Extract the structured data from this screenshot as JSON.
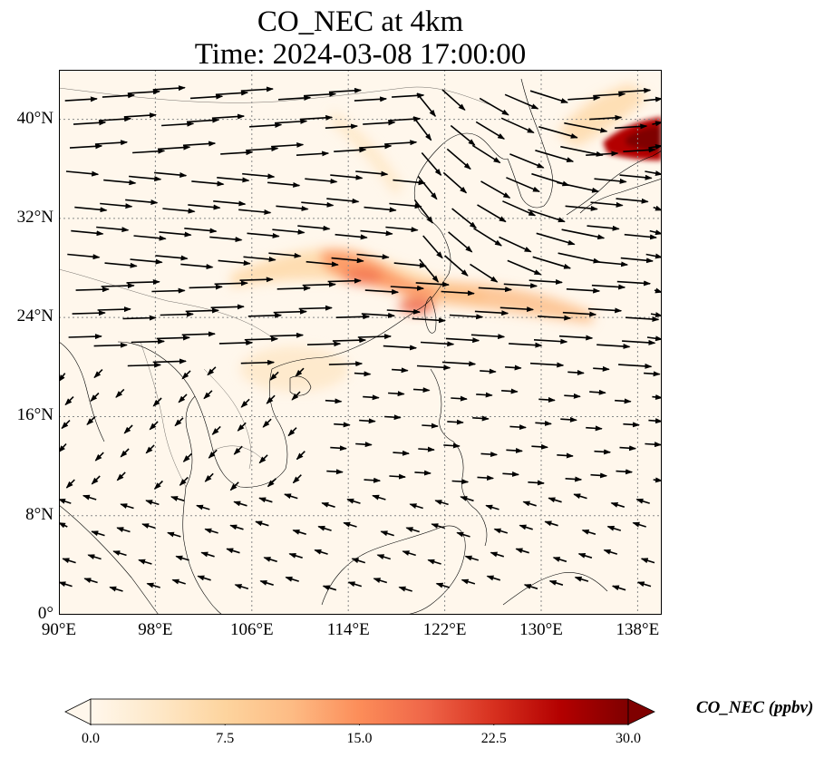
{
  "title_line1": "CO_NEC at 4km",
  "title_line2": "Time: 2024-03-08 17:00:00",
  "map": {
    "projection": "PlateCarree",
    "lon_range": [
      90,
      140
    ],
    "lat_range": [
      0,
      44
    ],
    "lat_ticks": [
      {
        "value": 0,
        "label": "0°"
      },
      {
        "value": 8,
        "label": "8°N"
      },
      {
        "value": 16,
        "label": "16°N"
      },
      {
        "value": 24,
        "label": "24°N"
      },
      {
        "value": 32,
        "label": "32°N"
      },
      {
        "value": 40,
        "label": "40°N"
      }
    ],
    "lon_ticks": [
      {
        "value": 90,
        "label": "90°E"
      },
      {
        "value": 98,
        "label": "98°E"
      },
      {
        "value": 106,
        "label": "106°E"
      },
      {
        "value": 114,
        "label": "114°E"
      },
      {
        "value": 122,
        "label": "122°E"
      },
      {
        "value": 130,
        "label": "130°E"
      },
      {
        "value": 138,
        "label": "138°E"
      }
    ],
    "gridlines": true,
    "field_variable": "CO_NEC",
    "wind_vectors": true
  },
  "colorbar": {
    "label": "CO_NEC (ppbv)",
    "min": 0.0,
    "max": 30.0,
    "extend": "both",
    "colormap": "OrRd",
    "ticks": [
      "0.0",
      "7.5",
      "15.0",
      "22.5",
      "30.0"
    ],
    "colors": [
      "#fff7ec",
      "#fee8c8",
      "#fdd49e",
      "#fdbb84",
      "#fc8d59",
      "#ef6548",
      "#d7301f",
      "#b30000",
      "#7f0000"
    ]
  }
}
